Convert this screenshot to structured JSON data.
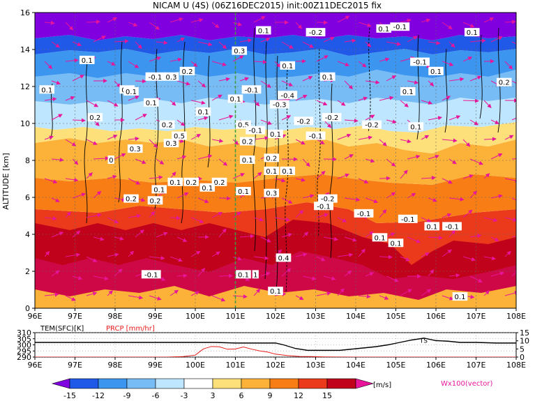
{
  "title": "NICAM U (4S) (06Z16DEC2015) init:00Z11DEC2015 fix",
  "colors": {
    "purple": "#8b00e0",
    "magenta": "#e8149a",
    "red_line": "#e81b1b",
    "green_line": "#39a83a",
    "black": "#000000"
  },
  "chart_data": [
    {
      "type": "heatmap",
      "title": "NICAM U (4S) (06Z16DEC2015) init:00Z11DEC2015 fix",
      "ylabel": "ALTITUDE [km]",
      "xlim": [
        96,
        108
      ],
      "ylim": [
        0,
        16
      ],
      "x_ticks": [
        "96E",
        "97E",
        "98E",
        "99E",
        "100E",
        "101E",
        "102E",
        "103E",
        "104E",
        "105E",
        "106E",
        "107E",
        "108E"
      ],
      "y_ticks": [
        "0",
        "2",
        "4",
        "6",
        "8",
        "10",
        "12",
        "14",
        "16"
      ],
      "grid": true,
      "reference_line_x": 101,
      "colorbar": {
        "levels": [
          "-15",
          "-12",
          "-9",
          "-6",
          "-3",
          "3",
          "6",
          "9",
          "12",
          "15"
        ],
        "unit": "[m/s]",
        "colors": [
          "#8000e0",
          "#2058e8",
          "#3c96f0",
          "#78bcf5",
          "#bfe6ff",
          "#ffffff",
          "#fde07a",
          "#fcb239",
          "#f87d15",
          "#ea3a1b",
          "#c0021a",
          "#e8149a"
        ]
      },
      "vector_label": "Wx100(vector)",
      "contour_labels": [
        {
          "x": 97.3,
          "y": 13.4,
          "text": "0.1"
        },
        {
          "x": 96.3,
          "y": 11.8,
          "text": "0.1"
        },
        {
          "x": 98.3,
          "y": 11.8,
          "text": "0.1"
        },
        {
          "x": 99.0,
          "y": 12.5,
          "text": "-0.1"
        },
        {
          "x": 99.4,
          "y": 12.5,
          "text": "0.3"
        },
        {
          "x": 99.8,
          "y": 12.8,
          "text": "0.2"
        },
        {
          "x": 101.7,
          "y": 15.0,
          "text": "0.1"
        },
        {
          "x": 103.0,
          "y": 14.9,
          "text": "-0.2"
        },
        {
          "x": 104.7,
          "y": 15.1,
          "text": "0.1"
        },
        {
          "x": 105.1,
          "y": 15.2,
          "text": "-0.1"
        },
        {
          "x": 106.9,
          "y": 14.9,
          "text": "0.1"
        },
        {
          "x": 101.1,
          "y": 13.9,
          "text": "0.3"
        },
        {
          "x": 102.3,
          "y": 13.1,
          "text": "0.1"
        },
        {
          "x": 105.6,
          "y": 13.3,
          "text": "-0.1"
        },
        {
          "x": 106.0,
          "y": 12.8,
          "text": "0.1"
        },
        {
          "x": 103.3,
          "y": 12.5,
          "text": "0.1"
        },
        {
          "x": 107.7,
          "y": 12.2,
          "text": "0.2"
        },
        {
          "x": 105.3,
          "y": 11.7,
          "text": "0.1"
        },
        {
          "x": 101.4,
          "y": 11.8,
          "text": "-0.1"
        },
        {
          "x": 101.0,
          "y": 11.3,
          "text": "0.1"
        },
        {
          "x": 102.3,
          "y": 11.5,
          "text": "-0.4"
        },
        {
          "x": 102.1,
          "y": 11.0,
          "text": "-0.3"
        },
        {
          "x": 102.7,
          "y": 10.1,
          "text": "-0.2"
        },
        {
          "x": 103.4,
          "y": 10.3,
          "text": "-0.2"
        },
        {
          "x": 103.0,
          "y": 9.3,
          "text": "-0.1"
        },
        {
          "x": 104.4,
          "y": 9.9,
          "text": "-0.2"
        },
        {
          "x": 105.5,
          "y": 9.8,
          "text": "0.1"
        },
        {
          "x": 97.5,
          "y": 10.3,
          "text": "0.2"
        },
        {
          "x": 98.4,
          "y": 11.7,
          "text": "0.1"
        },
        {
          "x": 98.9,
          "y": 11.1,
          "text": "0.1"
        },
        {
          "x": 99.3,
          "y": 9.9,
          "text": "0.2"
        },
        {
          "x": 100.2,
          "y": 10.6,
          "text": "0.1"
        },
        {
          "x": 101.2,
          "y": 9.9,
          "text": "0.5"
        },
        {
          "x": 101.5,
          "y": 9.6,
          "text": "-0.1"
        },
        {
          "x": 101.3,
          "y": 9.0,
          "text": "0.2"
        },
        {
          "x": 102.0,
          "y": 9.4,
          "text": "0.1"
        },
        {
          "x": 98.5,
          "y": 8.6,
          "text": "0.3"
        },
        {
          "x": 99.6,
          "y": 9.3,
          "text": "0.5"
        },
        {
          "x": 99.4,
          "y": 8.9,
          "text": "0.3"
        },
        {
          "x": 97.9,
          "y": 8.0,
          "text": "0"
        },
        {
          "x": 101.3,
          "y": 8.0,
          "text": "0.1"
        },
        {
          "x": 101.9,
          "y": 8.1,
          "text": "0.2"
        },
        {
          "x": 102.3,
          "y": 7.4,
          "text": "0.1"
        },
        {
          "x": 101.9,
          "y": 7.4,
          "text": "0.1"
        },
        {
          "x": 99.1,
          "y": 6.4,
          "text": "0.1"
        },
        {
          "x": 99.5,
          "y": 6.8,
          "text": "0.1"
        },
        {
          "x": 99.9,
          "y": 6.8,
          "text": "0.2"
        },
        {
          "x": 100.6,
          "y": 6.8,
          "text": "0.2"
        },
        {
          "x": 100.3,
          "y": 6.5,
          "text": "0.1"
        },
        {
          "x": 101.2,
          "y": 6.3,
          "text": "0.1"
        },
        {
          "x": 101.9,
          "y": 6.2,
          "text": "0.3"
        },
        {
          "x": 98.4,
          "y": 5.9,
          "text": "0.2"
        },
        {
          "x": 99.0,
          "y": 5.8,
          "text": "0.2"
        },
        {
          "x": 103.3,
          "y": 5.9,
          "text": "-0.2"
        },
        {
          "x": 103.2,
          "y": 5.5,
          "text": "-0.1"
        },
        {
          "x": 104.2,
          "y": 5.1,
          "text": "-0.1"
        },
        {
          "x": 105.3,
          "y": 4.8,
          "text": "-0.1"
        },
        {
          "x": 105.9,
          "y": 4.4,
          "text": "0.1"
        },
        {
          "x": 106.4,
          "y": 4.4,
          "text": "-0.1"
        },
        {
          "x": 104.6,
          "y": 3.8,
          "text": "0.1"
        },
        {
          "x": 105.0,
          "y": 3.5,
          "text": "0.1"
        },
        {
          "x": 102.2,
          "y": 2.7,
          "text": "0.4"
        },
        {
          "x": 98.9,
          "y": 1.8,
          "text": "-0.1"
        },
        {
          "x": 101.2,
          "y": 1.8,
          "text": "0.1"
        },
        {
          "x": 101.5,
          "y": 1.8,
          "text": "1"
        },
        {
          "x": 102.0,
          "y": 0.9,
          "text": "0.1"
        },
        {
          "x": 106.6,
          "y": 0.6,
          "text": "0.1"
        }
      ]
    },
    {
      "type": "line",
      "title": "TEM(SFC)[K]   PRCP [mm/hr]",
      "xlim": [
        96,
        108
      ],
      "y_left": {
        "ticks": [
          "290",
          "295",
          "300",
          "305",
          "310"
        ],
        "lim": [
          290,
          310
        ]
      },
      "y_right": {
        "ticks": [
          "0",
          "5",
          "10",
          "15"
        ],
        "lim": [
          0,
          15
        ]
      },
      "series": [
        {
          "name": "TEM(SFC)[K]",
          "color": "#000000",
          "axis": "left",
          "x": [
            96,
            96.5,
            97,
            97.5,
            98,
            98.5,
            99,
            99.5,
            100,
            100.5,
            101,
            101.5,
            102,
            102.2,
            102.5,
            102.8,
            103,
            103.3,
            103.6,
            103.9,
            104.2,
            104.5,
            104.8,
            105.1,
            105.4,
            105.7,
            106,
            106.3,
            106.6,
            107,
            107.5,
            108
          ],
          "y": [
            302,
            302,
            302,
            302,
            302,
            302,
            302,
            302,
            302,
            302,
            301.5,
            301.5,
            301.5,
            300,
            297,
            295.5,
            295.5,
            295.5,
            295.5,
            296.5,
            297.5,
            298.5,
            300,
            302,
            304,
            305.5,
            303.5,
            303,
            302,
            302,
            301.5,
            301.5
          ]
        },
        {
          "name": "PRCP [mm/hr]",
          "color": "#e81b1b",
          "axis": "right",
          "x": [
            96,
            99.3,
            99.7,
            100,
            100.2,
            100.4,
            100.6,
            100.8,
            101,
            101.2,
            101.4,
            101.6,
            101.8,
            102,
            102.3,
            102.6,
            102.9,
            103.2,
            103.5,
            104,
            108
          ],
          "y": [
            0,
            0,
            0.3,
            1.2,
            5.0,
            6.5,
            6.3,
            4.8,
            5.0,
            6.2,
            4.9,
            3.8,
            3.1,
            1.8,
            0.9,
            0.4,
            0.3,
            0.1,
            0.05,
            0,
            0
          ]
        }
      ],
      "annotations": [
        {
          "x": 105.7,
          "y": 304,
          "text": "TS"
        }
      ]
    }
  ]
}
